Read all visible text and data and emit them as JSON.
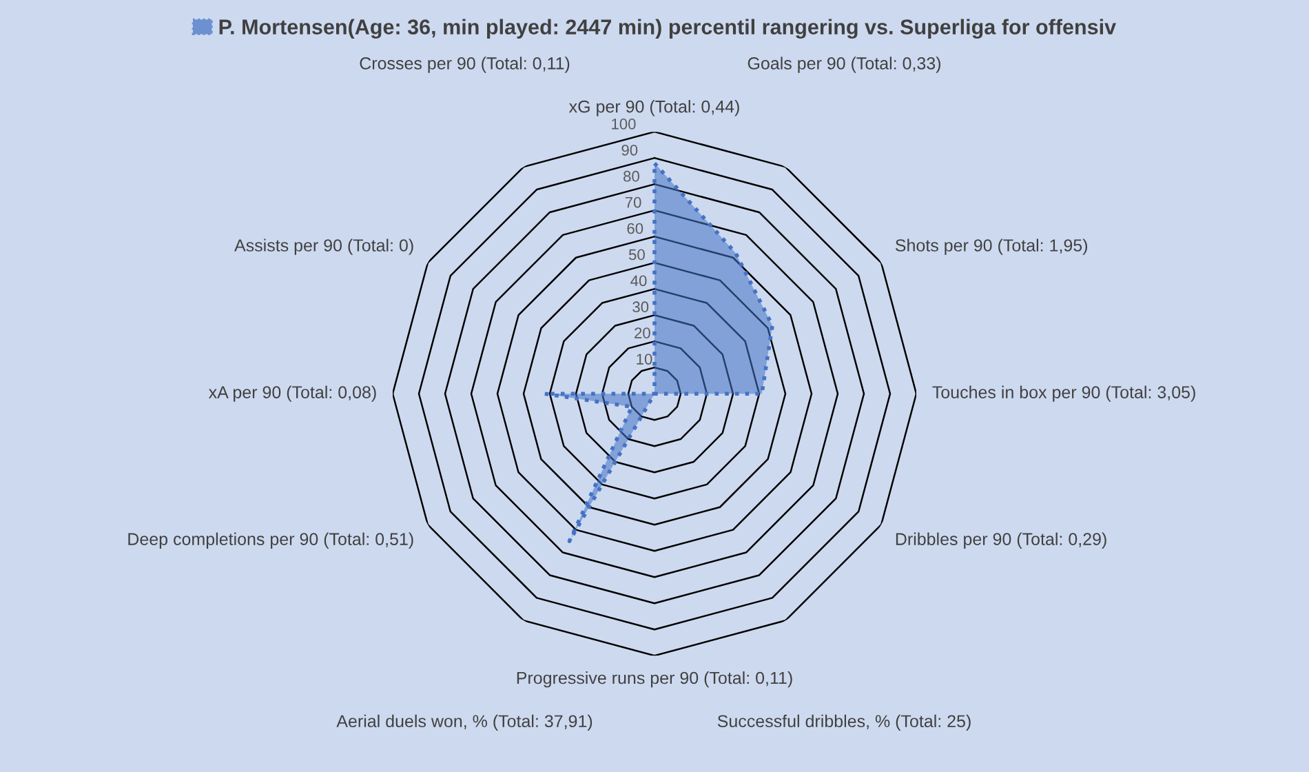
{
  "chart_data": {
    "type": "radar",
    "categories": [
      "xG per 90 (Total: 0,44)",
      "Goals per 90 (Total: 0,33)",
      "Shots per 90 (Total: 1,95)",
      "Touches in box per 90 (Total: 3,05)",
      "Dribbles per 90 (Total: 0,29)",
      "Successful dribbles, % (Total: 25)",
      "Progressive runs per 90 (Total: 0,11)",
      "Aerial duels won, % (Total: 37,91)",
      "Deep completions per 90 (Total: 0,51)",
      "xA per 90 (Total: 0,08)",
      "Assists per 90 (Total: 0)",
      "Crosses per 90 (Total: 0,11)"
    ],
    "series": [
      {
        "name": "P. Mortensen(Age: 36, min played: 2447 min) percentil rangering vs. Superliga for offensiv",
        "color": "#4472c4",
        "values": [
          88,
          62,
          52,
          41,
          0,
          0,
          0,
          65,
          10,
          42,
          0,
          0
        ]
      }
    ],
    "ylim": [
      0,
      100
    ],
    "yticks": [
      10,
      20,
      30,
      40,
      50,
      60,
      70,
      80,
      90,
      100
    ],
    "grid": true,
    "legend": "top",
    "line_style": "dotted",
    "marker": "none"
  }
}
